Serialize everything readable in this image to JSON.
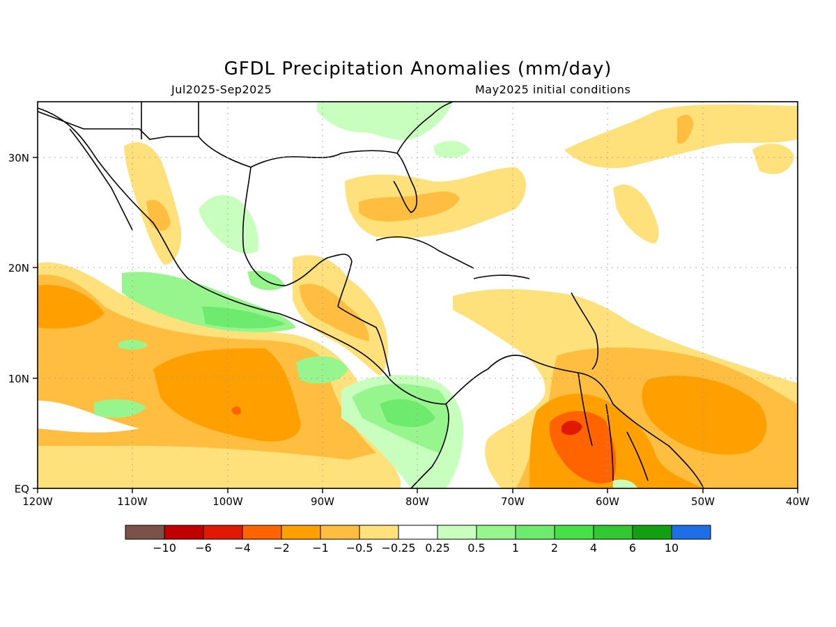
{
  "title": "GFDL Precipitation Anomalies (mm/day)",
  "period": "Jul2025-Sep2025",
  "init": "May2025 initial conditions",
  "axes": {
    "lon_labels": [
      "120W",
      "110W",
      "100W",
      "90W",
      "80W",
      "70W",
      "60W",
      "50W",
      "40W"
    ],
    "lat_labels": [
      "30N",
      "20N",
      "10N",
      "EQ"
    ]
  },
  "colorbar": {
    "colors": [
      "#7a5247",
      "#c00000",
      "#e01a00",
      "#ff6400",
      "#ffa000",
      "#ffbe40",
      "#ffe17c",
      "#ffffff",
      "#c8ffbe",
      "#96f58c",
      "#6eeb6e",
      "#48e048",
      "#32c832",
      "#12a012",
      "#1e6ee6"
    ],
    "labels": [
      "−10",
      "−6",
      "−4",
      "−2",
      "−1",
      "−0.5",
      "−0.25",
      "0.25",
      "0.5",
      "1",
      "2",
      "4",
      "6",
      "10"
    ]
  },
  "chart_data": {
    "type": "heatmap",
    "title": "GFDL Precipitation Anomalies (mm/day)",
    "subtitle_left": "Jul2025-Sep2025",
    "subtitle_right": "May2025 initial conditions",
    "lon_range": [
      -120,
      -40
    ],
    "lat_range": [
      0,
      35
    ],
    "levels": [
      -10,
      -6,
      -4,
      -2,
      -1,
      -0.5,
      -0.25,
      0.25,
      0.5,
      1,
      2,
      4,
      6,
      10
    ],
    "grid": true,
    "features": [
      {
        "region": "Eastern Pacific 5N-18N, 120W-85W",
        "anomaly": "dry, -1 to -2, locally -4"
      },
      {
        "region": "Northern South America / Guianas",
        "anomaly": "dry, -2 to -6"
      },
      {
        "region": "Tropical Atlantic 0-15N, 60W-40W",
        "anomaly": "dry, -1 to -2"
      },
      {
        "region": "Southern Mexico Pacific coast",
        "anomaly": "wet, +0.5 to +1"
      },
      {
        "region": "Panama / Colombia Pacific",
        "anomaly": "wet, +1 to +2"
      },
      {
        "region": "Gulf of Mexico / Caribbean",
        "anomaly": "mostly near zero"
      }
    ]
  }
}
